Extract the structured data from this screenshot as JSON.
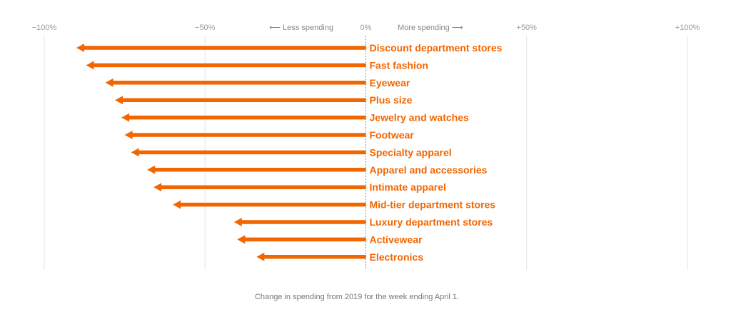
{
  "chart_data": {
    "type": "bar",
    "orientation": "horizontal",
    "categories": [
      "Discount department stores",
      "Fast fashion",
      "Eyewear",
      "Plus size",
      "Jewelry and watches",
      "Footwear",
      "Specialty apparel",
      "Apparel and accessories",
      "Intimate apparel",
      "Mid-tier department stores",
      "Luxury department stores",
      "Activewear",
      "Electronics"
    ],
    "values": [
      -90,
      -87,
      -81,
      -78,
      -76,
      -75,
      -73,
      -68,
      -66,
      -60,
      -41,
      -40,
      -34
    ],
    "xlim": [
      -100,
      100
    ],
    "x_ticks": [
      -100,
      -50,
      0,
      50,
      100
    ],
    "x_tick_labels": [
      "−100%",
      "−50%",
      "0%",
      "+50%",
      "+100%"
    ],
    "direction_labels": {
      "less": "⟵ Less spending",
      "more": "More spending ⟶"
    },
    "caption": "Change in spending from 2019 for the week ending April 1.",
    "grid": true,
    "color": "#f26600"
  }
}
